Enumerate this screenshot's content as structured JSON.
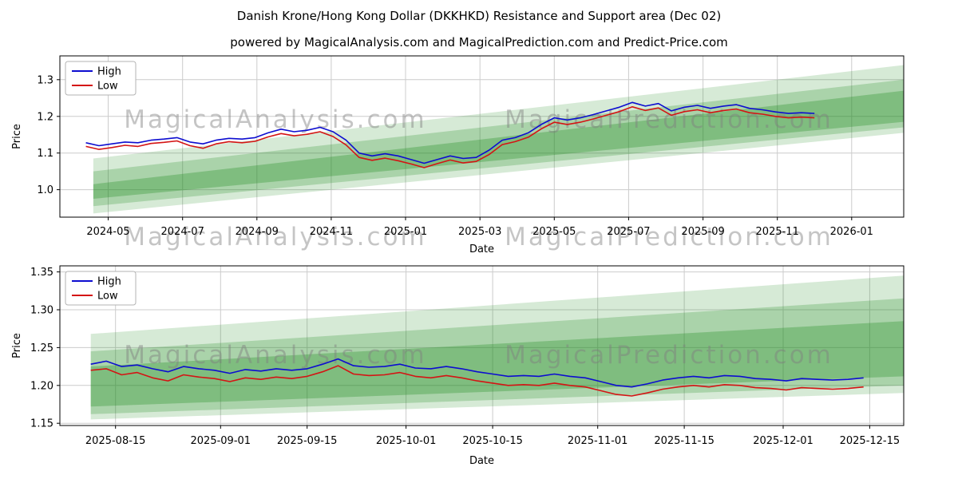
{
  "header": {
    "title": "Danish Krone/Hong Kong Dollar (DKKHKD) Resistance and Support area (Dec 02)",
    "subtitle": "powered by MagicalAnalysis.com and MagicalPrediction.com and Predict-Price.com"
  },
  "watermarks": {
    "left": "MagicalAnalysis.com",
    "right": "MagicalPrediction.com"
  },
  "colors": {
    "high": "#0d0dd0",
    "low": "#d41414",
    "band": "#1e8c1e",
    "grid": "#cccccc",
    "axis": "#000000",
    "watermark": "#7f7f7f",
    "legend_border": "#b3b3b3"
  },
  "chart_data": [
    {
      "name": "long-range-chart",
      "type": "line",
      "title": "Danish Krone/Hong Kong Dollar (DKKHKD) Resistance and Support area (Dec 02)",
      "xlabel": "Date",
      "ylabel": "Price",
      "legend_position": "upper-left",
      "grid": true,
      "x_unit": "months since 2024-04",
      "xlim": [
        -0.3,
        22.4
      ],
      "ylim": [
        0.925,
        1.365
      ],
      "x_tick_values": [
        1,
        3,
        5,
        7,
        9,
        11,
        13,
        15,
        17,
        19,
        21
      ],
      "x_tick_labels": [
        "2024-05",
        "2024-07",
        "2024-09",
        "2024-11",
        "2025-01",
        "2025-03",
        "2025-05",
        "2025-07",
        "2025-09",
        "2025-11",
        "2026-01"
      ],
      "y_tick_values": [
        1.0,
        1.1,
        1.2,
        1.3
      ],
      "y_tick_labels": [
        "1.0",
        "1.1",
        "1.2",
        "1.3"
      ],
      "x": [
        0.4,
        0.75,
        1.1,
        1.45,
        1.8,
        2.15,
        2.5,
        2.85,
        3.2,
        3.55,
        3.9,
        4.25,
        4.6,
        4.95,
        5.3,
        5.65,
        6.0,
        6.35,
        6.7,
        7.05,
        7.4,
        7.75,
        8.1,
        8.45,
        8.8,
        9.15,
        9.5,
        9.85,
        10.2,
        10.55,
        10.9,
        11.25,
        11.6,
        11.95,
        12.3,
        12.65,
        13.0,
        13.35,
        13.7,
        14.05,
        14.4,
        14.75,
        15.1,
        15.45,
        15.8,
        16.15,
        16.5,
        16.85,
        17.2,
        17.55,
        17.9,
        18.25,
        18.6,
        18.95,
        19.3,
        19.65,
        20.0
      ],
      "series": [
        {
          "name": "High",
          "color_key": "high",
          "values": [
            1.128,
            1.12,
            1.125,
            1.13,
            1.128,
            1.135,
            1.138,
            1.142,
            1.13,
            1.125,
            1.135,
            1.14,
            1.138,
            1.142,
            1.155,
            1.165,
            1.158,
            1.162,
            1.17,
            1.158,
            1.135,
            1.1,
            1.092,
            1.098,
            1.092,
            1.082,
            1.072,
            1.082,
            1.092,
            1.085,
            1.088,
            1.108,
            1.135,
            1.142,
            1.155,
            1.178,
            1.196,
            1.19,
            1.196,
            1.205,
            1.215,
            1.225,
            1.238,
            1.228,
            1.235,
            1.215,
            1.225,
            1.23,
            1.222,
            1.228,
            1.232,
            1.222,
            1.218,
            1.212,
            1.208,
            1.21,
            1.208
          ]
        },
        {
          "name": "Low",
          "color_key": "low",
          "values": [
            1.118,
            1.11,
            1.115,
            1.121,
            1.118,
            1.126,
            1.129,
            1.133,
            1.12,
            1.113,
            1.125,
            1.131,
            1.128,
            1.132,
            1.144,
            1.153,
            1.147,
            1.151,
            1.158,
            1.145,
            1.122,
            1.088,
            1.08,
            1.086,
            1.079,
            1.07,
            1.06,
            1.071,
            1.081,
            1.073,
            1.077,
            1.096,
            1.123,
            1.131,
            1.143,
            1.166,
            1.184,
            1.178,
            1.184,
            1.193,
            1.203,
            1.213,
            1.226,
            1.216,
            1.223,
            1.203,
            1.213,
            1.218,
            1.21,
            1.216,
            1.22,
            1.21,
            1.206,
            1.2,
            1.196,
            1.198,
            1.196
          ]
        }
      ],
      "bands": [
        {
          "label": "support-resistance-outer",
          "x0": 0.6,
          "x1": 22.4,
          "bottom": [
            0.935,
            1.155
          ],
          "top": [
            1.085,
            1.34
          ],
          "opacity": 0.18
        },
        {
          "label": "support-resistance-middle",
          "x0": 0.6,
          "x1": 22.4,
          "bottom": [
            0.955,
            1.17
          ],
          "top": [
            1.05,
            1.3
          ],
          "opacity": 0.24
        },
        {
          "label": "support-resistance-core",
          "x0": 0.6,
          "x1": 22.4,
          "bottom": [
            0.975,
            1.185
          ],
          "top": [
            1.015,
            1.27
          ],
          "opacity": 0.3
        }
      ]
    },
    {
      "name": "short-range-chart",
      "type": "line",
      "title": "",
      "xlabel": "Date",
      "ylabel": "Price",
      "legend_position": "upper-left",
      "grid": true,
      "x_unit": "days since 2025-08-01",
      "xlim": [
        5,
        141.5
      ],
      "ylim": [
        1.147,
        1.358
      ],
      "x_tick_values": [
        14,
        31,
        45,
        61,
        75,
        92,
        106,
        122,
        136
      ],
      "x_tick_labels": [
        "2025-08-15",
        "2025-09-01",
        "2025-09-15",
        "2025-10-01",
        "2025-10-15",
        "2025-11-01",
        "2025-11-15",
        "2025-12-01",
        "2025-12-15"
      ],
      "y_tick_values": [
        1.15,
        1.2,
        1.25,
        1.3,
        1.35
      ],
      "y_tick_labels": [
        "1.15",
        "1.20",
        "1.25",
        "1.30",
        "1.35"
      ],
      "x": [
        10,
        12.5,
        15,
        17.5,
        20,
        22.5,
        25,
        27.5,
        30,
        32.5,
        35,
        37.5,
        40,
        42.5,
        45,
        47.5,
        50,
        52.5,
        55,
        57.5,
        60,
        62.5,
        65,
        67.5,
        70,
        72.5,
        75,
        77.5,
        80,
        82.5,
        85,
        87.5,
        90,
        92.5,
        95,
        97.5,
        100,
        102.5,
        105,
        107.5,
        110,
        112.5,
        115,
        117.5,
        120,
        122.5,
        125,
        127.5,
        130,
        132.5,
        135
      ],
      "series": [
        {
          "name": "High",
          "color_key": "high",
          "values": [
            1.228,
            1.232,
            1.225,
            1.227,
            1.222,
            1.218,
            1.225,
            1.222,
            1.22,
            1.216,
            1.221,
            1.219,
            1.222,
            1.22,
            1.222,
            1.228,
            1.235,
            1.226,
            1.224,
            1.225,
            1.228,
            1.223,
            1.222,
            1.225,
            1.222,
            1.218,
            1.215,
            1.212,
            1.213,
            1.212,
            1.215,
            1.212,
            1.21,
            1.205,
            1.2,
            1.198,
            1.202,
            1.207,
            1.21,
            1.212,
            1.21,
            1.213,
            1.212,
            1.209,
            1.208,
            1.206,
            1.209,
            1.208,
            1.207,
            1.208,
            1.21
          ]
        },
        {
          "name": "Low",
          "color_key": "low",
          "values": [
            1.22,
            1.222,
            1.214,
            1.217,
            1.21,
            1.206,
            1.214,
            1.211,
            1.209,
            1.205,
            1.21,
            1.208,
            1.211,
            1.209,
            1.212,
            1.218,
            1.226,
            1.215,
            1.213,
            1.214,
            1.217,
            1.212,
            1.21,
            1.213,
            1.21,
            1.206,
            1.203,
            1.2,
            1.201,
            1.2,
            1.203,
            1.2,
            1.198,
            1.193,
            1.188,
            1.186,
            1.19,
            1.195,
            1.198,
            1.2,
            1.198,
            1.201,
            1.2,
            1.197,
            1.196,
            1.194,
            1.197,
            1.196,
            1.195,
            1.196,
            1.198
          ]
        }
      ],
      "bands": [
        {
          "label": "support-resistance-outer",
          "x0": 10,
          "x1": 141.5,
          "bottom": [
            1.155,
            1.19
          ],
          "top": [
            1.268,
            1.345
          ],
          "opacity": 0.18
        },
        {
          "label": "support-resistance-middle",
          "x0": 10,
          "x1": 141.5,
          "bottom": [
            1.162,
            1.2
          ],
          "top": [
            1.245,
            1.315
          ],
          "opacity": 0.24
        },
        {
          "label": "support-resistance-core",
          "x0": 10,
          "x1": 141.5,
          "bottom": [
            1.172,
            1.212
          ],
          "top": [
            1.225,
            1.285
          ],
          "opacity": 0.3
        }
      ]
    }
  ]
}
